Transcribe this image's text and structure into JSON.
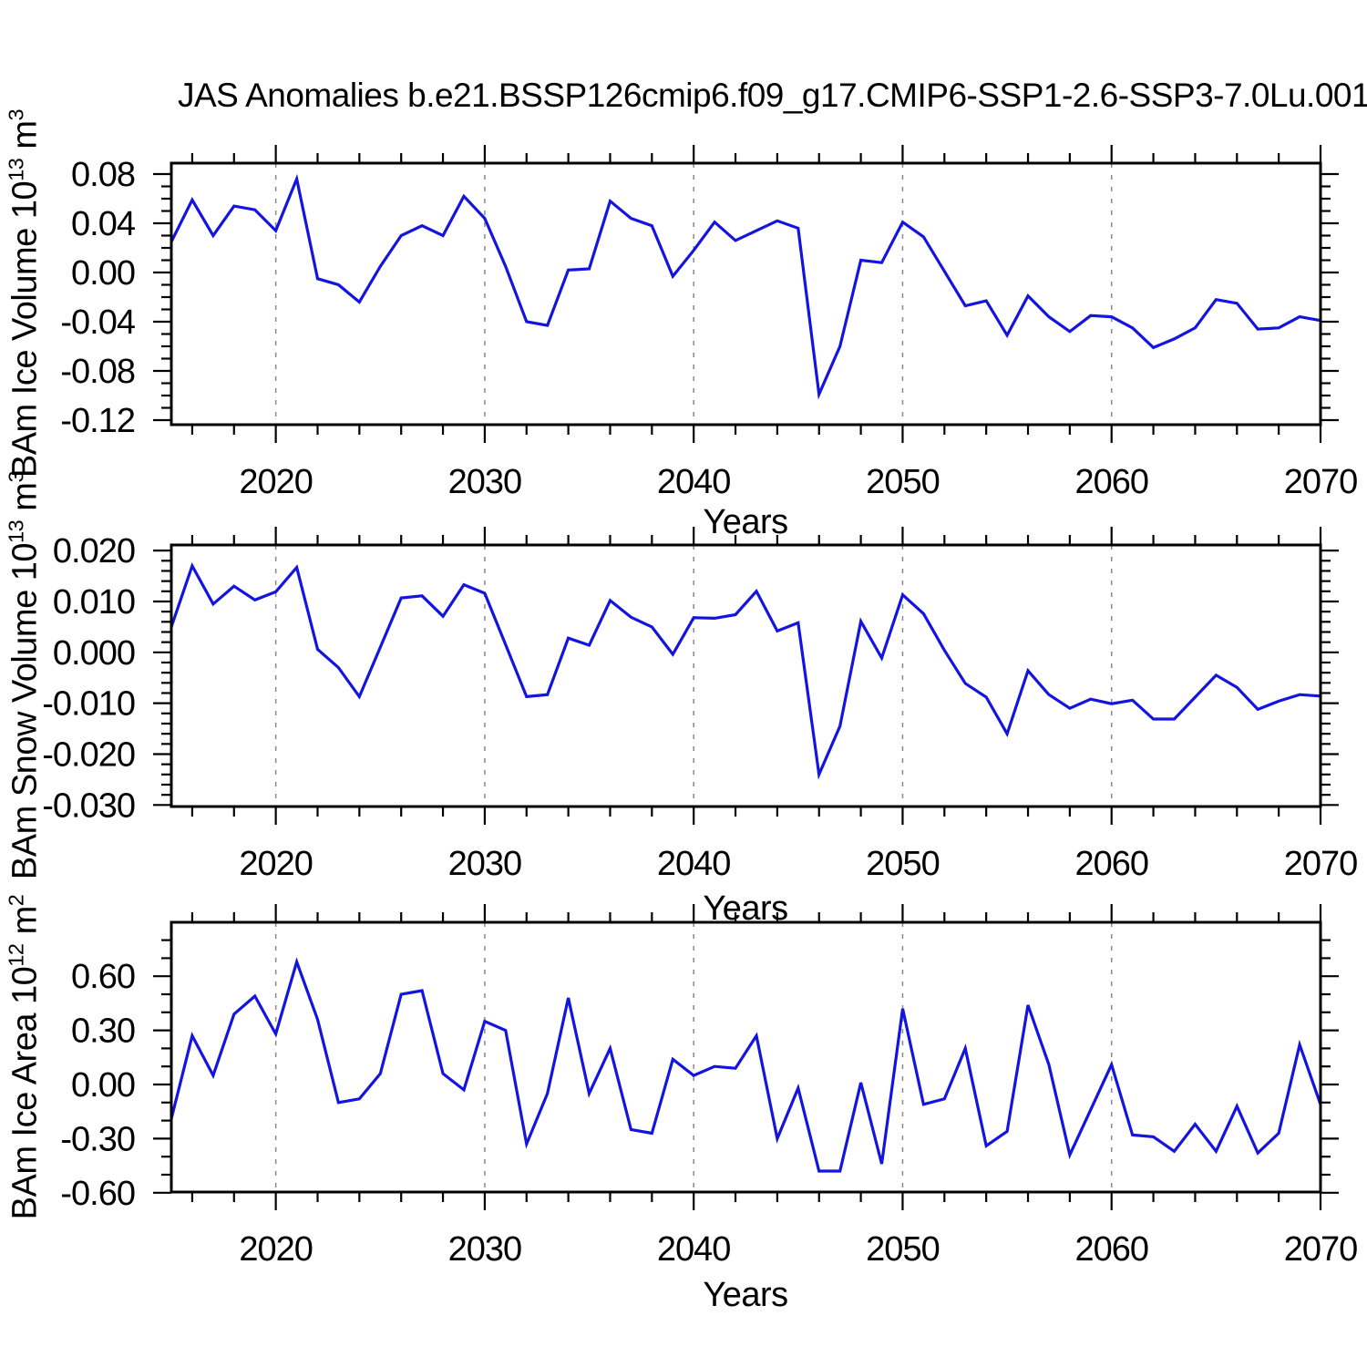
{
  "title": "JAS Anomalies b.e21.BSSP126cmip6.f09_g17.CMIP6-SSP1-2.6-SSP3-7.0Lu.001",
  "colors": {
    "line": "#1414e0",
    "grid": "#8a8a8a",
    "axis": "#000000"
  },
  "chart_data": [
    {
      "type": "line",
      "name": "bam-ice-volume",
      "xlabel": "Years",
      "ylabel": {
        "text": "BAm Ice Volume 10",
        "sup1": "13",
        "mid": " m",
        "sup2": "3"
      },
      "ylabel_plain": "BAm Ice Volume 10^13 m^3",
      "xlim": [
        2015,
        2070
      ],
      "ylim": [
        -0.1237,
        0.0889
      ],
      "x_ticks": [
        2020,
        2030,
        2040,
        2050,
        2060,
        2070
      ],
      "x_tick_labels": [
        "2020",
        "2030",
        "2040",
        "2050",
        "2060",
        "2070"
      ],
      "x_minor_step": 2,
      "y_ticks": [
        0.08,
        0.04,
        0.0,
        -0.04,
        -0.08,
        -0.12
      ],
      "y_tick_labels": [
        "0.08",
        "0.04",
        "0.00",
        "-0.04",
        "-0.08",
        "-0.12"
      ],
      "y_minor_step": 0.01,
      "grid_x": [
        2020,
        2030,
        2040,
        2050,
        2060
      ],
      "x": [
        2015,
        2016,
        2017,
        2018,
        2019,
        2020,
        2021,
        2022,
        2023,
        2024,
        2025,
        2026,
        2027,
        2028,
        2029,
        2030,
        2031,
        2032,
        2033,
        2034,
        2035,
        2036,
        2037,
        2038,
        2039,
        2040,
        2041,
        2042,
        2043,
        2044,
        2045,
        2046,
        2047,
        2048,
        2049,
        2050,
        2051,
        2052,
        2053,
        2054,
        2055,
        2056,
        2057,
        2058,
        2059,
        2060,
        2061,
        2062,
        2063,
        2064,
        2065,
        2066,
        2067,
        2068,
        2069,
        2070
      ],
      "values": [
        0.025,
        0.059,
        0.03,
        0.054,
        0.051,
        0.034,
        0.076,
        -0.005,
        -0.01,
        -0.024,
        0.005,
        0.03,
        0.038,
        0.03,
        0.062,
        0.044,
        0.005,
        -0.04,
        -0.043,
        0.002,
        0.003,
        0.058,
        0.044,
        0.038,
        -0.003,
        0.018,
        0.041,
        0.026,
        0.034,
        0.042,
        0.036,
        -0.099,
        -0.06,
        0.01,
        0.008,
        0.041,
        0.029,
        0.001,
        -0.027,
        -0.023,
        -0.051,
        -0.019,
        -0.036,
        -0.048,
        -0.035,
        -0.036,
        -0.045,
        -0.061,
        -0.054,
        -0.045,
        -0.022,
        -0.025,
        -0.046,
        -0.045,
        -0.036,
        -0.039
      ]
    },
    {
      "type": "line",
      "name": "bam-snow-volume",
      "xlabel": "Years",
      "ylabel": {
        "text": "BAm Snow Volume 10",
        "sup1": "13",
        "mid": " m",
        "sup2": "3"
      },
      "ylabel_plain": "BAm Snow Volume 10^13 m^3",
      "xlim": [
        2015,
        2070
      ],
      "ylim": [
        -0.0303,
        0.0211
      ],
      "x_ticks": [
        2020,
        2030,
        2040,
        2050,
        2060,
        2070
      ],
      "x_tick_labels": [
        "2020",
        "2030",
        "2040",
        "2050",
        "2060",
        "2070"
      ],
      "x_minor_step": 2,
      "y_ticks": [
        0.02,
        0.01,
        0.0,
        -0.01,
        -0.02,
        -0.03
      ],
      "y_tick_labels": [
        "0.020",
        "0.010",
        "0.000",
        "-0.010",
        "-0.020",
        "-0.030"
      ],
      "y_minor_step": 0.002,
      "grid_x": [
        2020,
        2030,
        2040,
        2050,
        2060
      ],
      "x": [
        2015,
        2016,
        2017,
        2018,
        2019,
        2020,
        2021,
        2022,
        2023,
        2024,
        2025,
        2026,
        2027,
        2028,
        2029,
        2030,
        2031,
        2032,
        2033,
        2034,
        2035,
        2036,
        2037,
        2038,
        2039,
        2040,
        2041,
        2042,
        2043,
        2044,
        2045,
        2046,
        2047,
        2048,
        2049,
        2050,
        2051,
        2052,
        2053,
        2054,
        2055,
        2056,
        2057,
        2058,
        2059,
        2060,
        2061,
        2062,
        2063,
        2064,
        2065,
        2066,
        2067,
        2068,
        2069,
        2070
      ],
      "values": [
        0.005,
        0.017,
        0.0095,
        0.013,
        0.0103,
        0.0119,
        0.0167,
        0.0006,
        -0.003,
        -0.0087,
        0.001,
        0.0107,
        0.0111,
        0.0071,
        0.0133,
        0.0116,
        0.0015,
        -0.0087,
        -0.0083,
        0.0028,
        0.0014,
        0.0102,
        0.0069,
        0.005,
        -0.0004,
        0.0068,
        0.0067,
        0.0074,
        0.012,
        0.0042,
        0.0058,
        -0.024,
        -0.0145,
        0.0061,
        -0.0011,
        0.0113,
        0.0076,
        0.0004,
        -0.0061,
        -0.0088,
        -0.016,
        -0.0036,
        -0.0083,
        -0.011,
        -0.0092,
        -0.0101,
        -0.0094,
        -0.0131,
        -0.0131,
        -0.0088,
        -0.0045,
        -0.0069,
        -0.0112,
        -0.0096,
        -0.0083,
        -0.0086
      ]
    },
    {
      "type": "line",
      "name": "bam-ice-area",
      "xlabel": "Years",
      "ylabel": {
        "text": "BAm Ice Area 10",
        "sup1": "12",
        "mid": " m",
        "sup2": "2"
      },
      "ylabel_plain": "BAm Ice Area 10^12 m^2",
      "xlim": [
        2015,
        2070
      ],
      "ylim": [
        -0.596,
        0.899
      ],
      "x_ticks": [
        2020,
        2030,
        2040,
        2050,
        2060,
        2070
      ],
      "x_tick_labels": [
        "2020",
        "2030",
        "2040",
        "2050",
        "2060",
        "2070"
      ],
      "x_minor_step": 2,
      "y_ticks": [
        0.6,
        0.3,
        0.0,
        -0.3,
        -0.6
      ],
      "y_tick_labels": [
        "0.60",
        "0.30",
        "0.00",
        "-0.30",
        "-0.60"
      ],
      "y_minor_step": 0.1,
      "grid_x": [
        2020,
        2030,
        2040,
        2050,
        2060
      ],
      "x": [
        2015,
        2016,
        2017,
        2018,
        2019,
        2020,
        2021,
        2022,
        2023,
        2024,
        2025,
        2026,
        2027,
        2028,
        2029,
        2030,
        2031,
        2032,
        2033,
        2034,
        2035,
        2036,
        2037,
        2038,
        2039,
        2040,
        2041,
        2042,
        2043,
        2044,
        2045,
        2046,
        2047,
        2048,
        2049,
        2050,
        2051,
        2052,
        2053,
        2054,
        2055,
        2056,
        2057,
        2058,
        2059,
        2060,
        2061,
        2062,
        2063,
        2064,
        2065,
        2066,
        2067,
        2068,
        2069,
        2070
      ],
      "values": [
        -0.19,
        0.27,
        0.05,
        0.39,
        0.49,
        0.28,
        0.68,
        0.36,
        -0.1,
        -0.08,
        0.06,
        0.5,
        0.52,
        0.06,
        -0.03,
        0.35,
        0.3,
        -0.33,
        -0.05,
        0.48,
        -0.05,
        0.2,
        -0.25,
        -0.27,
        0.14,
        0.05,
        0.1,
        0.09,
        0.27,
        -0.3,
        -0.02,
        -0.48,
        -0.48,
        0.01,
        -0.44,
        0.42,
        -0.11,
        -0.08,
        0.2,
        -0.34,
        -0.26,
        0.44,
        0.11,
        -0.39,
        -0.14,
        0.11,
        -0.28,
        -0.29,
        -0.37,
        -0.22,
        -0.37,
        -0.12,
        -0.38,
        -0.27,
        0.22,
        -0.11
      ]
    }
  ]
}
